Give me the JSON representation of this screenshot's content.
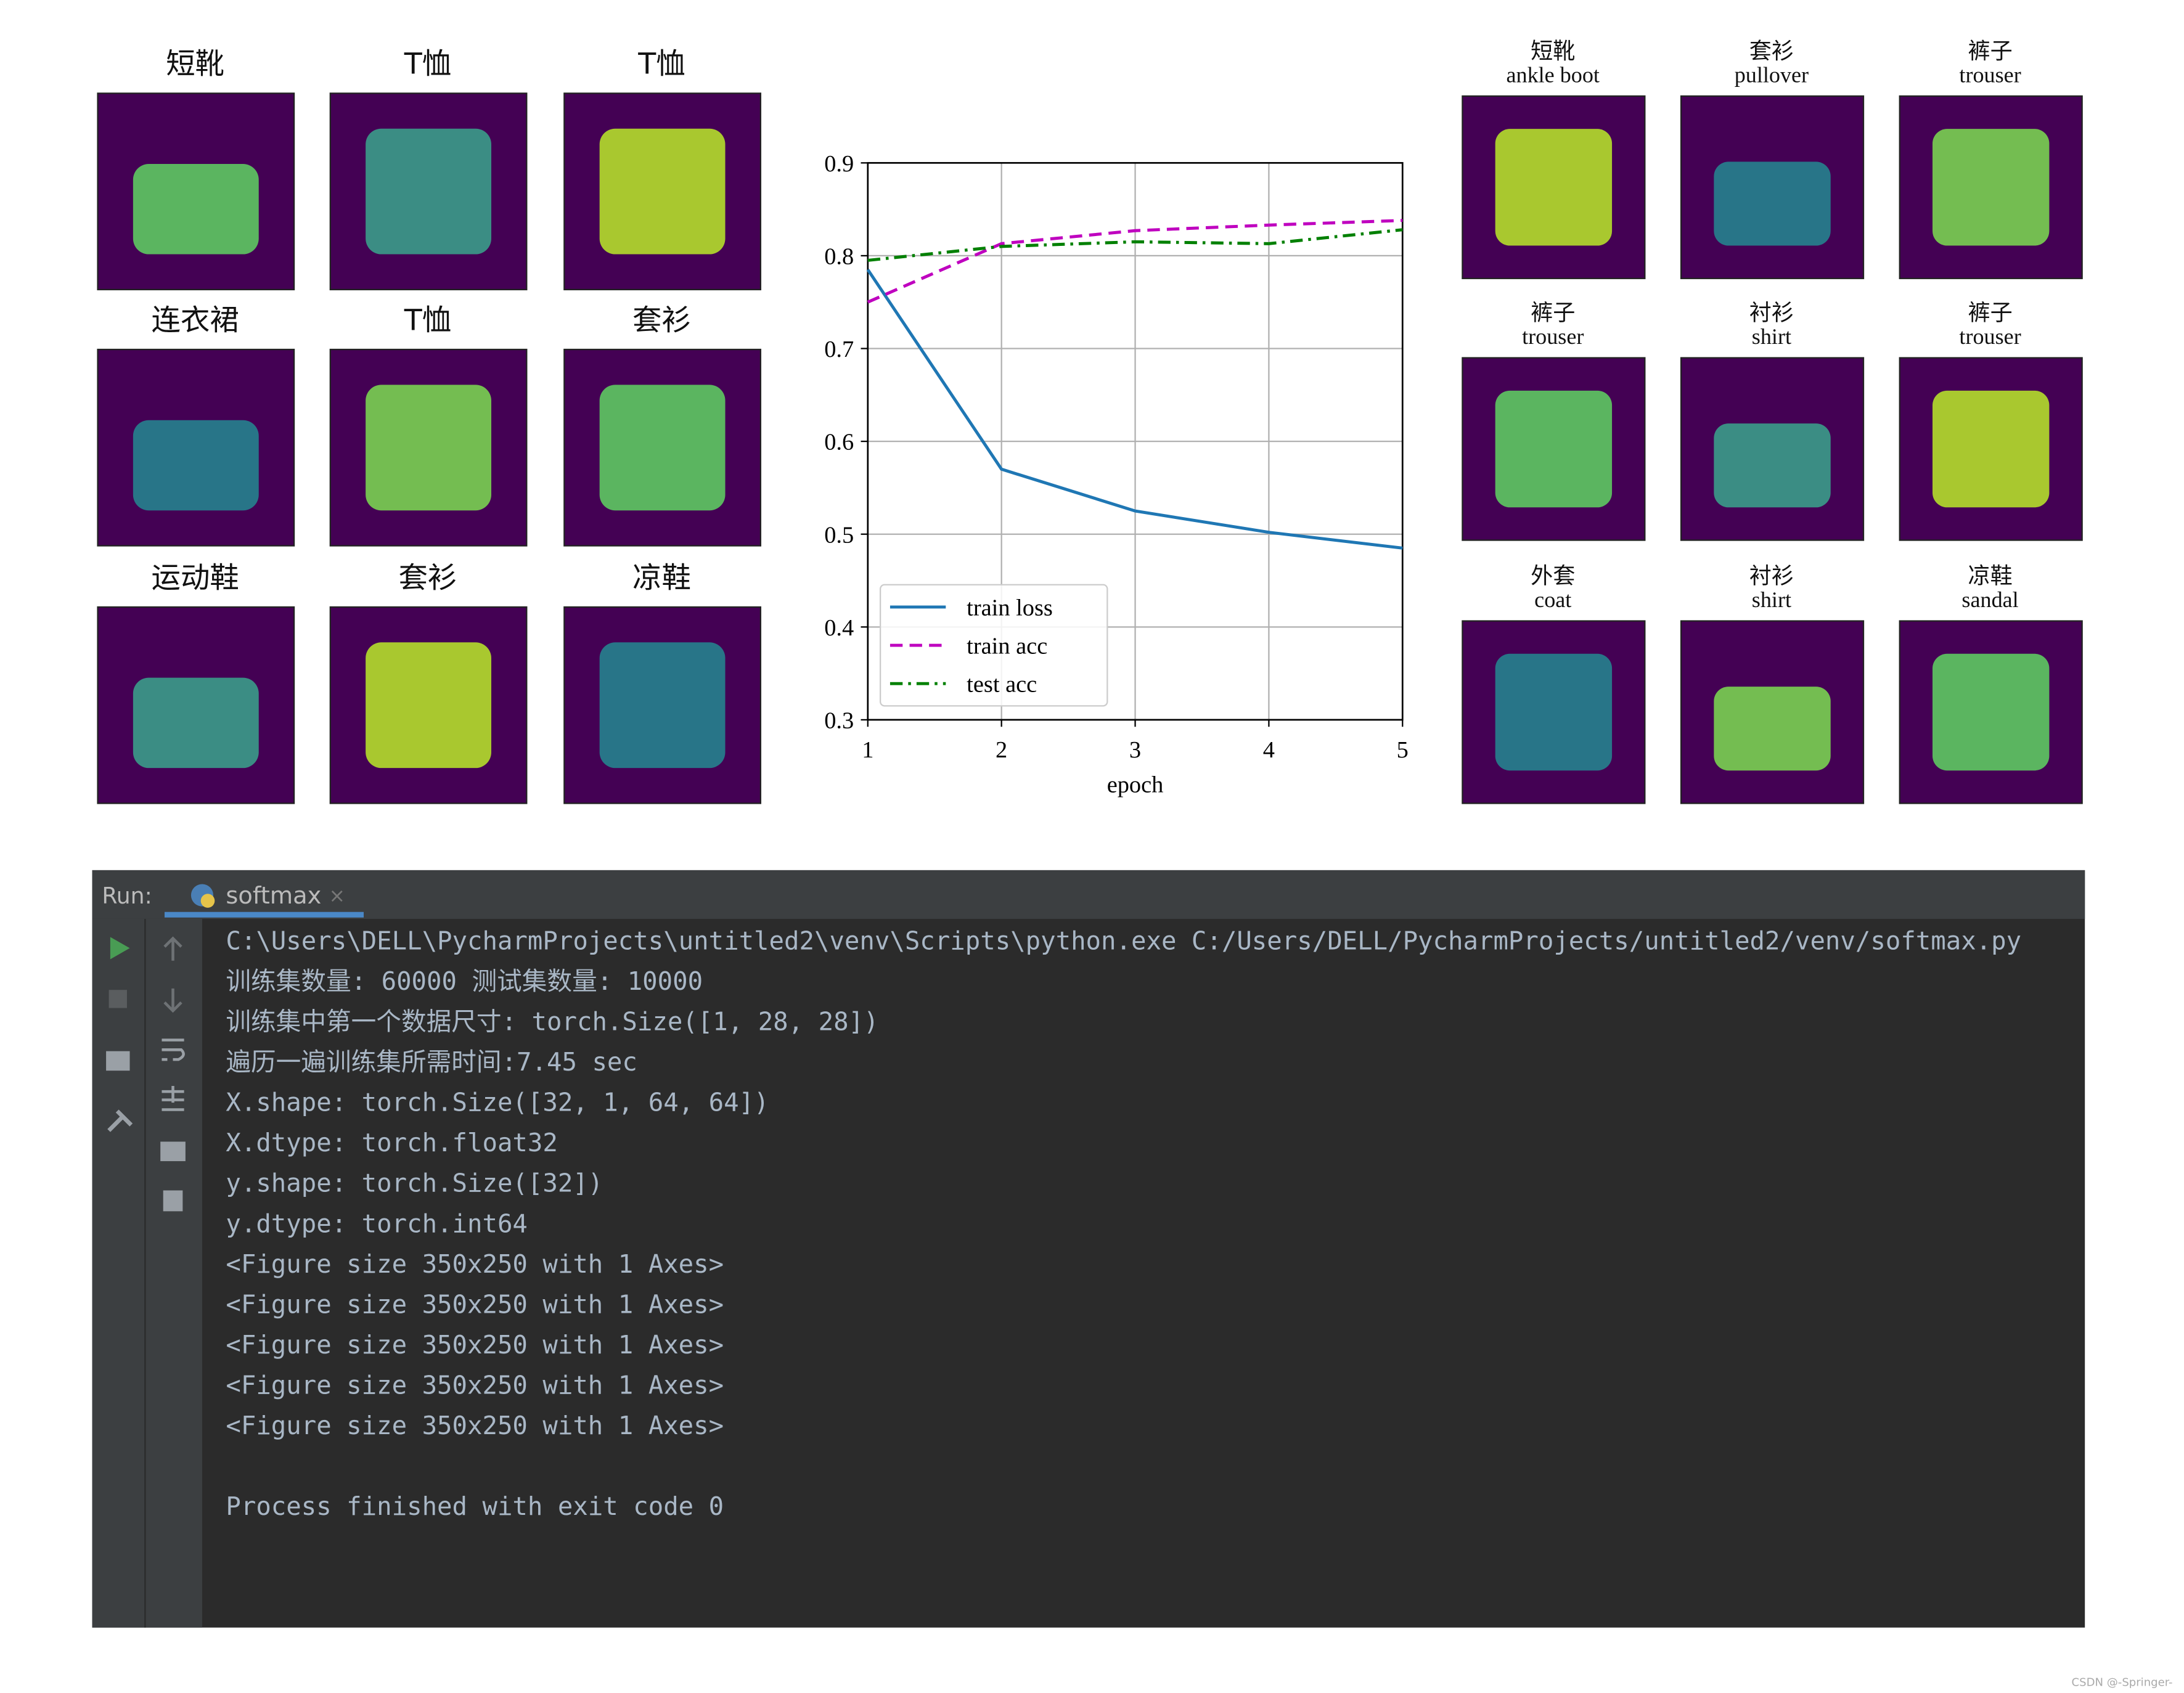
{
  "left_grid": {
    "labels": [
      "短靴",
      "T恤",
      "T恤",
      "连衣裙",
      "T恤",
      "套衫",
      "运动鞋",
      "套衫",
      "凉鞋"
    ]
  },
  "chart_data": {
    "type": "line",
    "x": [
      1,
      2,
      3,
      4,
      5
    ],
    "series": [
      {
        "name": "train loss",
        "color": "#1f77b4",
        "linestyle": "solid",
        "values": [
          0.785,
          0.57,
          0.525,
          0.502,
          0.485
        ]
      },
      {
        "name": "train acc",
        "color": "#bf00bf",
        "linestyle": "dashed",
        "values": [
          0.75,
          0.813,
          0.827,
          0.833,
          0.838
        ]
      },
      {
        "name": "test acc",
        "color": "#008000",
        "linestyle": "dashdot",
        "values": [
          0.795,
          0.81,
          0.815,
          0.813,
          0.828
        ]
      }
    ],
    "xlabel": "epoch",
    "xlim": [
      1,
      5
    ],
    "xticks": [
      1,
      2,
      3,
      4,
      5
    ],
    "ylim": [
      0.3,
      0.9
    ],
    "yticks": [
      0.3,
      0.4,
      0.5,
      0.6,
      0.7,
      0.8,
      0.9
    ],
    "grid": true,
    "legend": "lower left"
  },
  "right_grid": {
    "labels": [
      [
        "短靴",
        "ankle boot"
      ],
      [
        "套衫",
        "pullover"
      ],
      [
        "裤子",
        "trouser"
      ],
      [
        "裤子",
        "trouser"
      ],
      [
        "衬衫",
        "shirt"
      ],
      [
        "裤子",
        "trouser"
      ],
      [
        "外套",
        "coat"
      ],
      [
        "衬衫",
        "shirt"
      ],
      [
        "凉鞋",
        "sandal"
      ]
    ]
  },
  "console": {
    "panel": "Run:",
    "tab": "softmax",
    "lines": [
      "C:\\Users\\DELL\\PycharmProjects\\untitled2\\venv\\Scripts\\python.exe C:/Users/DELL/PycharmProjects/untitled2/venv/softmax.py",
      "训练集数量:  60000 测试集数量:  10000",
      "训练集中第一个数据尺寸:  torch.Size([1, 28, 28])",
      "遍历一遍训练集所需时间:7.45 sec",
      "X.shape:  torch.Size([32, 1, 64, 64])",
      "X.dtype:  torch.float32",
      "y.shape:  torch.Size([32])",
      "y.dtype:  torch.int64",
      "<Figure size 350x250 with 1 Axes>",
      "<Figure size 350x250 with 1 Axes>",
      "<Figure size 350x250 with 1 Axes>",
      "<Figure size 350x250 with 1 Axes>",
      "<Figure size 350x250 with 1 Axes>"
    ],
    "exit_message": "Process finished with exit code 0"
  },
  "watermark": "CSDN @-Springer-"
}
